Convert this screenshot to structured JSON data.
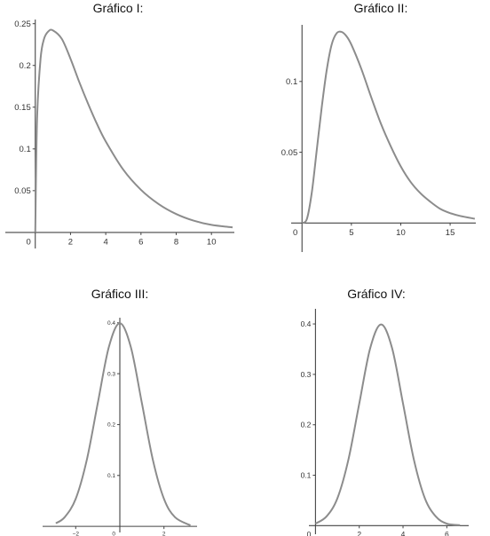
{
  "chart_data": [
    {
      "type": "line",
      "title": "Gráfico I:",
      "xlim": [
        -1.7,
        11.3
      ],
      "ylim": [
        -0.015,
        0.255
      ],
      "xticks": [
        2,
        4,
        6,
        8,
        10
      ],
      "xtick_labels": [
        "2",
        "4",
        "6",
        "8",
        "10"
      ],
      "yticks": [
        0.05,
        0.1,
        0.15,
        0.2,
        0.25
      ],
      "ytick_labels": [
        "0.05",
        "0.1",
        "0.15",
        "0.2",
        "0.25"
      ],
      "origin_label": "0",
      "series": [
        {
          "x": [
            0,
            0.1,
            0.3,
            0.5,
            0.75,
            1,
            1.5,
            2,
            2.5,
            3,
            3.5,
            4,
            5,
            6,
            7,
            8,
            9,
            10,
            11.2
          ],
          "y": [
            0,
            0.135,
            0.208,
            0.232,
            0.241,
            0.242,
            0.232,
            0.208,
            0.18,
            0.154,
            0.13,
            0.109,
            0.075,
            0.051,
            0.034,
            0.022,
            0.014,
            0.009,
            0.006
          ]
        }
      ],
      "grid": false
    },
    {
      "type": "line",
      "title": "Gráfico II:",
      "xlim": [
        -1.1,
        17.6
      ],
      "ylim": [
        -0.018,
        0.14
      ],
      "xticks": [
        5,
        10,
        15
      ],
      "xtick_labels": [
        "5",
        "10",
        "15"
      ],
      "yticks": [
        0.05,
        0.1
      ],
      "ytick_labels": [
        "0.05",
        "0.1"
      ],
      "origin_label": "0",
      "series": [
        {
          "x": [
            0,
            0.5,
            1,
            1.5,
            2,
            2.5,
            3,
            3.5,
            4,
            4.5,
            5,
            6,
            7,
            8,
            9,
            10,
            11,
            12,
            13,
            14,
            15,
            16,
            17.5
          ],
          "y": [
            0,
            0.003,
            0.022,
            0.052,
            0.082,
            0.108,
            0.126,
            0.134,
            0.135,
            0.132,
            0.126,
            0.109,
            0.089,
            0.07,
            0.054,
            0.04,
            0.029,
            0.021,
            0.015,
            0.01,
            0.007,
            0.005,
            0.003
          ]
        }
      ],
      "grid": false
    },
    {
      "type": "line",
      "title": "Gráfico III:",
      "xlim": [
        -3.5,
        3.5
      ],
      "ylim": [
        -0.005,
        0.41
      ],
      "xticks": [
        -2,
        2
      ],
      "xtick_labels": [
        "−2",
        "2"
      ],
      "yticks": [
        0.1,
        0.2,
        0.3,
        0.4
      ],
      "ytick_labels": [
        "0.1",
        "0.2",
        "0.3",
        "0.4"
      ],
      "origin_label": "0",
      "series": [
        {
          "x": [
            -2.9,
            -2.5,
            -2.0,
            -1.5,
            -1.0,
            -0.5,
            0,
            0.5,
            1.0,
            1.5,
            2.0,
            2.5,
            3.2
          ],
          "y": [
            0.006,
            0.018,
            0.054,
            0.13,
            0.242,
            0.352,
            0.399,
            0.352,
            0.242,
            0.13,
            0.054,
            0.018,
            0.002
          ]
        }
      ],
      "grid": false
    },
    {
      "type": "line",
      "title": "Gráfico IV:",
      "xlim": [
        -0.3,
        7.0
      ],
      "ylim": [
        -0.01,
        0.43
      ],
      "xticks": [
        2,
        4,
        6
      ],
      "xtick_labels": [
        "2",
        "4",
        "6"
      ],
      "yticks": [
        0.1,
        0.2,
        0.3,
        0.4
      ],
      "ytick_labels": [
        "0.1",
        "0.2",
        "0.3",
        "0.4"
      ],
      "origin_label": "0",
      "series": [
        {
          "x": [
            0,
            0.5,
            1,
            1.5,
            2,
            2.5,
            3,
            3.5,
            4,
            4.5,
            5,
            5.5,
            6,
            6.6
          ],
          "y": [
            0.004,
            0.018,
            0.054,
            0.13,
            0.242,
            0.352,
            0.399,
            0.352,
            0.242,
            0.13,
            0.054,
            0.018,
            0.004,
            0.001
          ]
        }
      ],
      "grid": false
    }
  ]
}
